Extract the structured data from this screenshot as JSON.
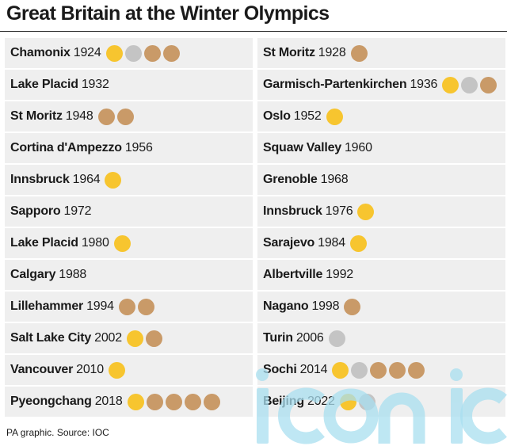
{
  "title": "Great Britain at the Winter Olympics",
  "source": "PA graphic. Source: IOC",
  "colors": {
    "gold": "#f7c52f",
    "silver": "#c4c4c4",
    "bronze": "#c99a68",
    "watermark": "#a9dff0"
  },
  "watermark_text": "iconic",
  "games": [
    {
      "city": "Chamonix",
      "year": "1924",
      "medals": [
        "gold",
        "silver",
        "bronze",
        "bronze"
      ]
    },
    {
      "city": "St Moritz",
      "year": "1928",
      "medals": [
        "bronze"
      ]
    },
    {
      "city": "Lake Placid",
      "year": "1932",
      "medals": []
    },
    {
      "city": "Garmisch-Partenkirchen",
      "year": "1936",
      "medals": [
        "gold",
        "silver",
        "bronze"
      ]
    },
    {
      "city": "St Moritz",
      "year": "1948",
      "medals": [
        "bronze",
        "bronze"
      ]
    },
    {
      "city": "Oslo",
      "year": "1952",
      "medals": [
        "gold"
      ]
    },
    {
      "city": "Cortina d'Ampezzo",
      "year": "1956",
      "medals": []
    },
    {
      "city": "Squaw Valley",
      "year": "1960",
      "medals": []
    },
    {
      "city": "Innsbruck",
      "year": "1964",
      "medals": [
        "gold"
      ]
    },
    {
      "city": "Grenoble",
      "year": "1968",
      "medals": []
    },
    {
      "city": "Sapporo",
      "year": "1972",
      "medals": []
    },
    {
      "city": "Innsbruck",
      "year": "1976",
      "medals": [
        "gold"
      ]
    },
    {
      "city": "Lake Placid",
      "year": "1980",
      "medals": [
        "gold"
      ]
    },
    {
      "city": "Sarajevo",
      "year": "1984",
      "medals": [
        "gold"
      ]
    },
    {
      "city": "Calgary",
      "year": "1988",
      "medals": []
    },
    {
      "city": "Albertville",
      "year": "1992",
      "medals": []
    },
    {
      "city": "Lillehammer",
      "year": "1994",
      "medals": [
        "bronze",
        "bronze"
      ]
    },
    {
      "city": "Nagano",
      "year": "1998",
      "medals": [
        "bronze"
      ]
    },
    {
      "city": "Salt Lake City",
      "year": "2002",
      "medals": [
        "gold",
        "bronze"
      ]
    },
    {
      "city": "Turin",
      "year": "2006",
      "medals": [
        "silver"
      ]
    },
    {
      "city": "Vancouver",
      "year": "2010",
      "medals": [
        "gold"
      ]
    },
    {
      "city": "Sochi",
      "year": "2014",
      "medals": [
        "gold",
        "silver",
        "bronze",
        "bronze",
        "bronze"
      ]
    },
    {
      "city": "Pyeongchang",
      "year": "2018",
      "medals": [
        "gold",
        "bronze",
        "bronze",
        "bronze",
        "bronze"
      ]
    },
    {
      "city": "Beijing",
      "year": "2022",
      "medals": [
        "gold",
        "silver"
      ]
    }
  ]
}
